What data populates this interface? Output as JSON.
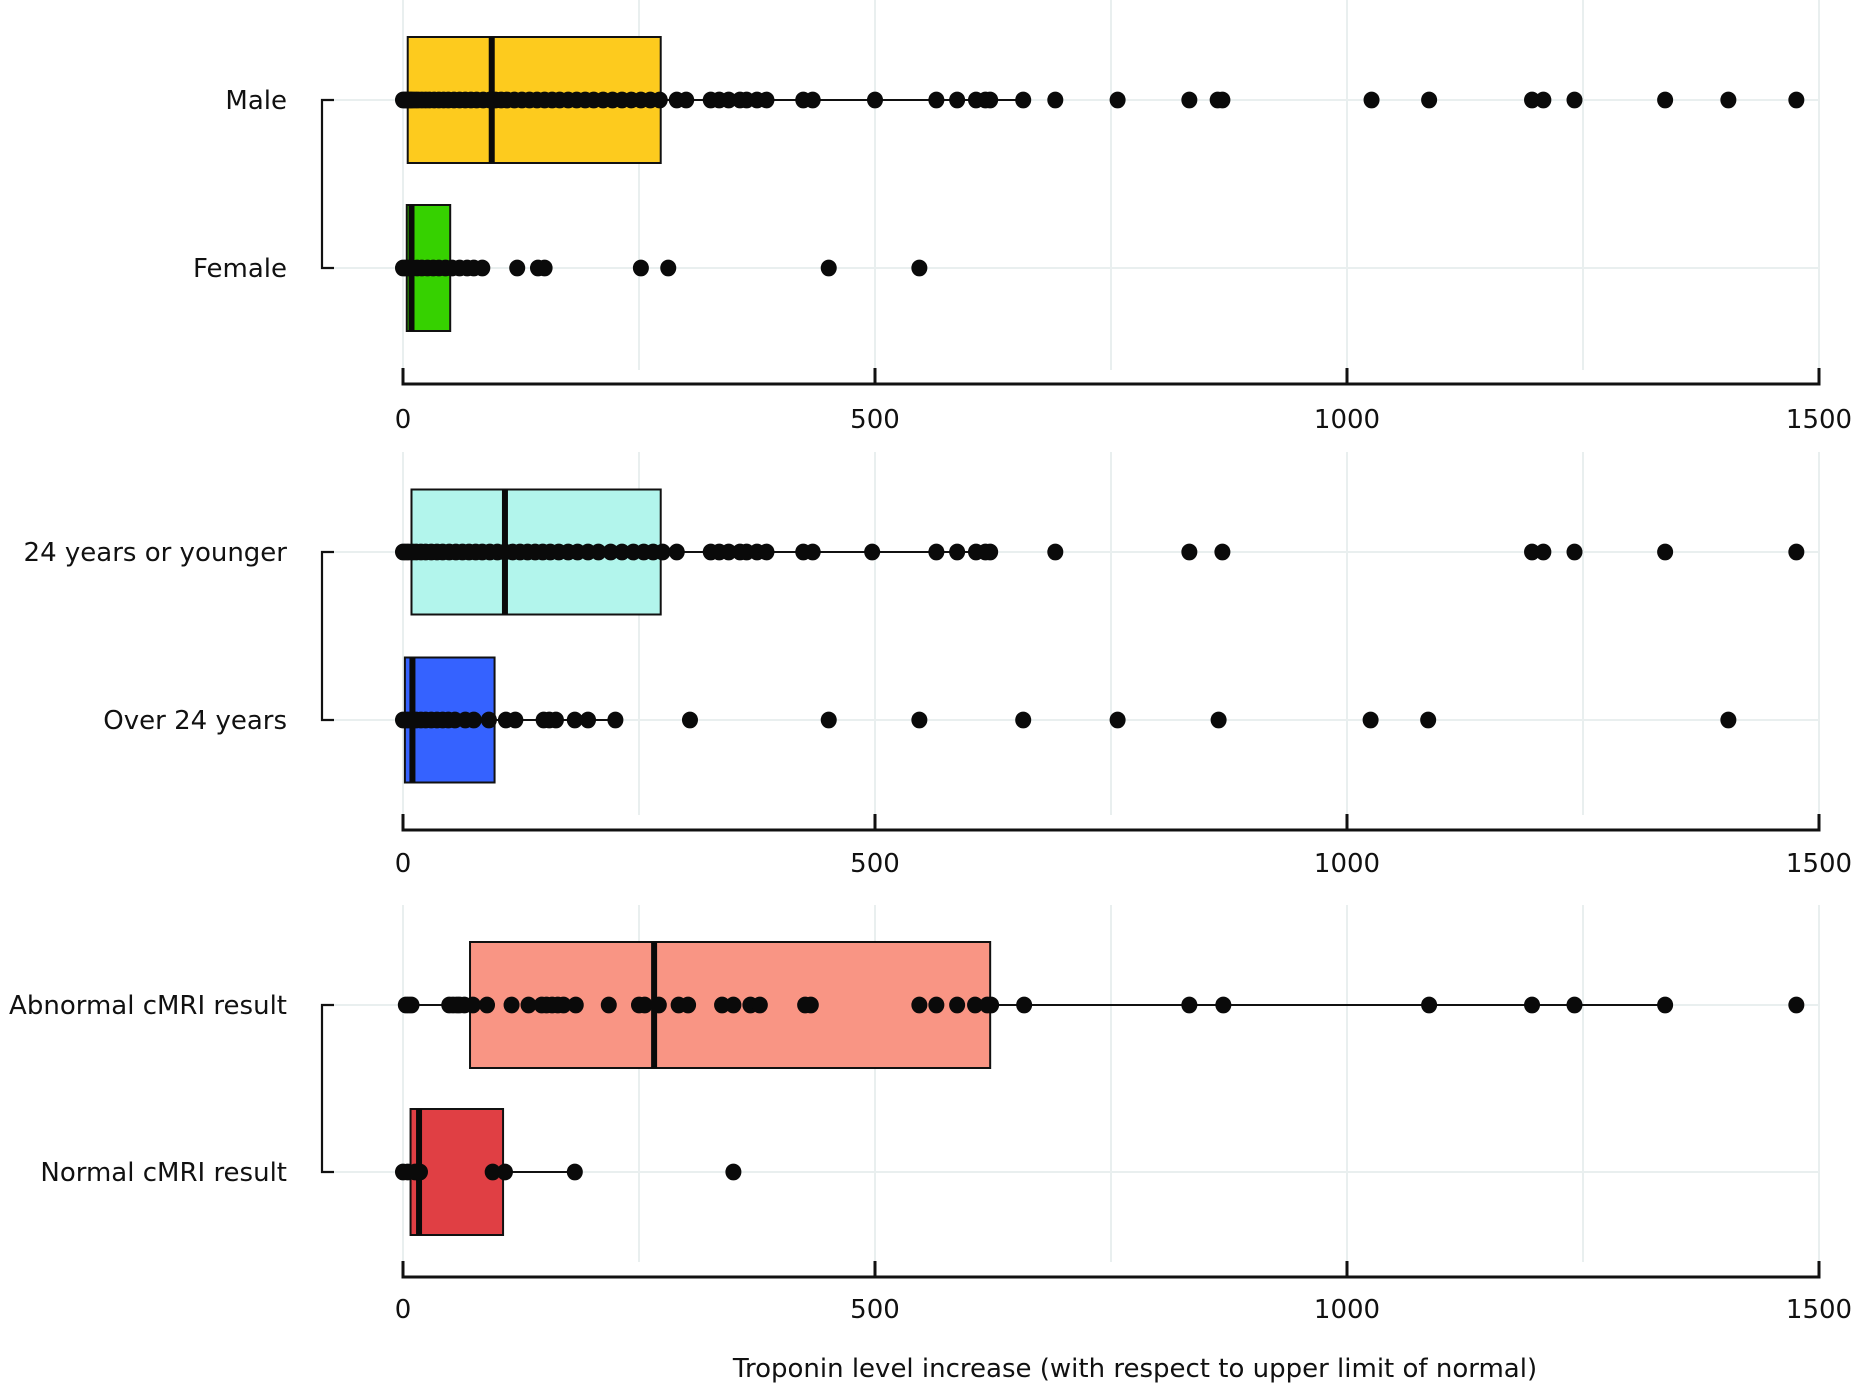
{
  "chart_data": [
    {
      "type": "box",
      "panel": "sex",
      "xlabel": "",
      "xlim": [
        0,
        1500
      ],
      "xticks": [
        0,
        500,
        1000,
        1500
      ],
      "grid": true,
      "groups": [
        {
          "name": "Male",
          "color": "#fdcb1e",
          "q1": 5,
          "median": 94,
          "q3": 273,
          "whisker_low": 0,
          "whisker_high": 657,
          "points": [
            0,
            2,
            4,
            6,
            8,
            10,
            13,
            16,
            20,
            24,
            28,
            33,
            38,
            43,
            48,
            54,
            60,
            66,
            72,
            78,
            85,
            92,
            98,
            104,
            110,
            118,
            126,
            134,
            142,
            150,
            158,
            166,
            175,
            184,
            193,
            202,
            212,
            222,
            232,
            242,
            252,
            262,
            272,
            290,
            300,
            326,
            335,
            345,
            357,
            364,
            375,
            385,
            424,
            434,
            500,
            565,
            587,
            607,
            617,
            622,
            657,
            691,
            757,
            833,
            863,
            868,
            1026,
            1087,
            1196,
            1208,
            1241,
            1337,
            1404,
            1476
          ]
        },
        {
          "name": "Female",
          "color": "#36d100",
          "q1": 4,
          "median": 9,
          "q3": 50,
          "whisker_low": 0,
          "whisker_high": 84,
          "points": [
            0,
            3,
            6,
            10,
            15,
            20,
            26,
            32,
            38,
            45,
            52,
            60,
            68,
            75,
            84,
            121,
            143,
            150,
            252,
            281,
            451,
            547
          ]
        }
      ]
    },
    {
      "type": "box",
      "panel": "age",
      "xlabel": "",
      "xlim": [
        0,
        1500
      ],
      "xticks": [
        0,
        500,
        1000,
        1500
      ],
      "grid": true,
      "groups": [
        {
          "name": "24 years or younger",
          "color": "#b2f5ec",
          "q1": 9,
          "median": 108,
          "q3": 273,
          "whisker_low": 0,
          "whisker_high": 622,
          "points": [
            0,
            3,
            6,
            10,
            14,
            19,
            24,
            30,
            36,
            42,
            49,
            56,
            63,
            70,
            77,
            84,
            92,
            100,
            108,
            116,
            124,
            132,
            140,
            148,
            156,
            165,
            175,
            185,
            196,
            207,
            220,
            232,
            244,
            255,
            265,
            275,
            290,
            326,
            335,
            345,
            357,
            364,
            375,
            385,
            424,
            434,
            497,
            565,
            587,
            607,
            617,
            622,
            691,
            833,
            868,
            1196,
            1208,
            1241,
            1337,
            1476
          ]
        },
        {
          "name": "Over 24 years",
          "color": "#3562ff",
          "q1": 2,
          "median": 10,
          "q3": 97,
          "whisker_low": 0,
          "whisker_high": 225,
          "points": [
            0,
            3,
            6,
            10,
            14,
            19,
            24,
            30,
            36,
            42,
            48,
            55,
            66,
            75,
            91,
            109,
            119,
            149,
            155,
            162,
            182,
            196,
            225,
            304,
            451,
            547,
            657,
            757,
            864,
            1025,
            1086,
            1404
          ]
        }
      ]
    },
    {
      "type": "box",
      "panel": "cmri",
      "xlabel": "Troponin level increase (with respect to upper limit of normal)",
      "xlim": [
        0,
        1500
      ],
      "xticks": [
        0,
        500,
        1000,
        1500
      ],
      "grid": true,
      "groups": [
        {
          "name": "Abnormal cMRI result",
          "color": "#f99584",
          "q1": 71,
          "median": 266,
          "q3": 622,
          "whisker_low": 3,
          "whisker_high": 1337,
          "points": [
            3,
            6,
            9,
            49,
            53,
            57,
            60,
            65,
            74,
            89,
            115,
            133,
            147,
            152,
            158,
            164,
            170,
            183,
            218,
            250,
            256,
            271,
            292,
            302,
            338,
            350,
            368,
            378,
            426,
            432,
            547,
            565,
            587,
            606,
            619,
            623,
            658,
            833,
            869,
            1087,
            1196,
            1241,
            1337,
            1476
          ]
        },
        {
          "name": "Normal cMRI result",
          "color": "#e03f44",
          "q1": 8,
          "median": 17,
          "q3": 106,
          "whisker_low": 0,
          "whisker_high": 182,
          "points": [
            0,
            5,
            13,
            18,
            95,
            108,
            182,
            350
          ]
        }
      ]
    }
  ]
}
